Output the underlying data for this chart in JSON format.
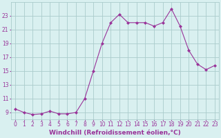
{
  "x": [
    0,
    1,
    2,
    3,
    4,
    5,
    6,
    7,
    8,
    9,
    10,
    11,
    12,
    13,
    14,
    15,
    16,
    17,
    18,
    19,
    20,
    21,
    22,
    23
  ],
  "y": [
    9.5,
    9.0,
    8.7,
    8.8,
    9.2,
    8.8,
    8.8,
    9.0,
    11.0,
    15.0,
    19.0,
    22.0,
    23.2,
    22.0,
    22.0,
    22.0,
    21.5,
    22.0,
    24.0,
    21.5,
    18.0,
    16.0,
    15.2,
    15.8
  ],
  "line_color": "#993399",
  "marker": "D",
  "marker_size": 2.0,
  "bg_color": "#d9f0f0",
  "grid_color": "#aacccc",
  "xlabel": "Windchill (Refroidissement éolien,°C)",
  "xlabel_fontsize": 6.5,
  "ylabel_ticks": [
    9,
    11,
    13,
    15,
    17,
    19,
    21,
    23
  ],
  "xlim": [
    -0.5,
    23.5
  ],
  "ylim": [
    8.0,
    25.0
  ],
  "xtick_labels": [
    "0",
    "1",
    "2",
    "3",
    "4",
    "5",
    "6",
    "7",
    "8",
    "9",
    "10",
    "11",
    "12",
    "13",
    "14",
    "15",
    "16",
    "17",
    "18",
    "19",
    "20",
    "21",
    "22",
    "23"
  ],
  "tick_fontsize": 5.5,
  "label_color": "#993399",
  "linewidth": 0.8
}
